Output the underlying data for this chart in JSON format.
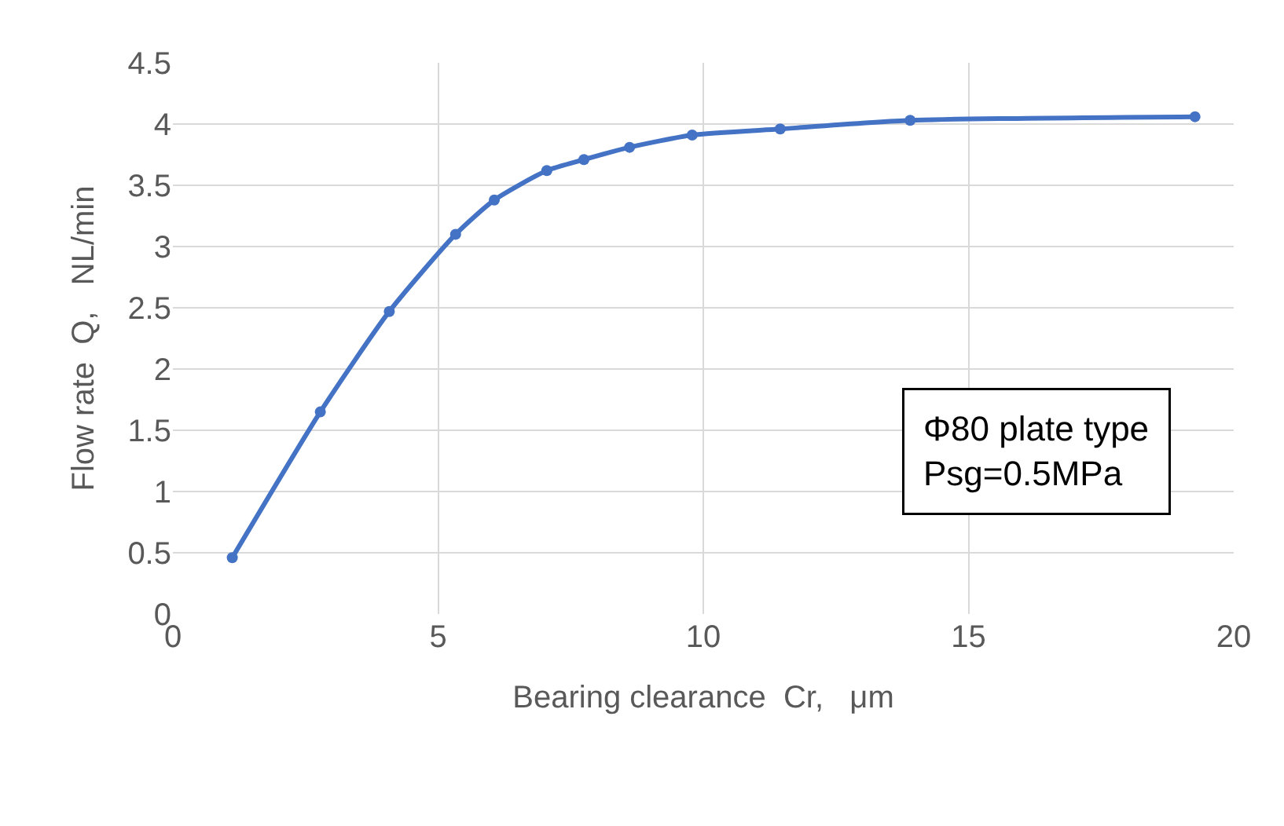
{
  "chart_data": {
    "type": "line",
    "xlabel": "Bearing clearance  Cr,   μm",
    "ylabel": "Flow rate  Q,   NL/min",
    "x": [
      1.12,
      2.78,
      4.08,
      5.33,
      6.06,
      7.05,
      7.75,
      8.61,
      9.79,
      11.45,
      13.9,
      19.27
    ],
    "series": [
      {
        "color": "#4472c4",
        "values": [
          0.46,
          1.65,
          2.47,
          3.1,
          3.38,
          3.62,
          3.71,
          3.81,
          3.91,
          3.96,
          4.03,
          4.06
        ]
      }
    ],
    "xlim": [
      0,
      20
    ],
    "xticks": [
      0,
      5,
      10,
      15,
      20
    ],
    "ylim": [
      0,
      4.5
    ],
    "yticks": [
      0,
      0.5,
      1,
      1.5,
      2,
      2.5,
      3,
      3.5,
      4,
      4.5
    ],
    "grid": true,
    "marker": "circle",
    "line_style": "solid",
    "annotations": [
      "Φ80 plate type\nPsg=0.5MPa"
    ]
  }
}
